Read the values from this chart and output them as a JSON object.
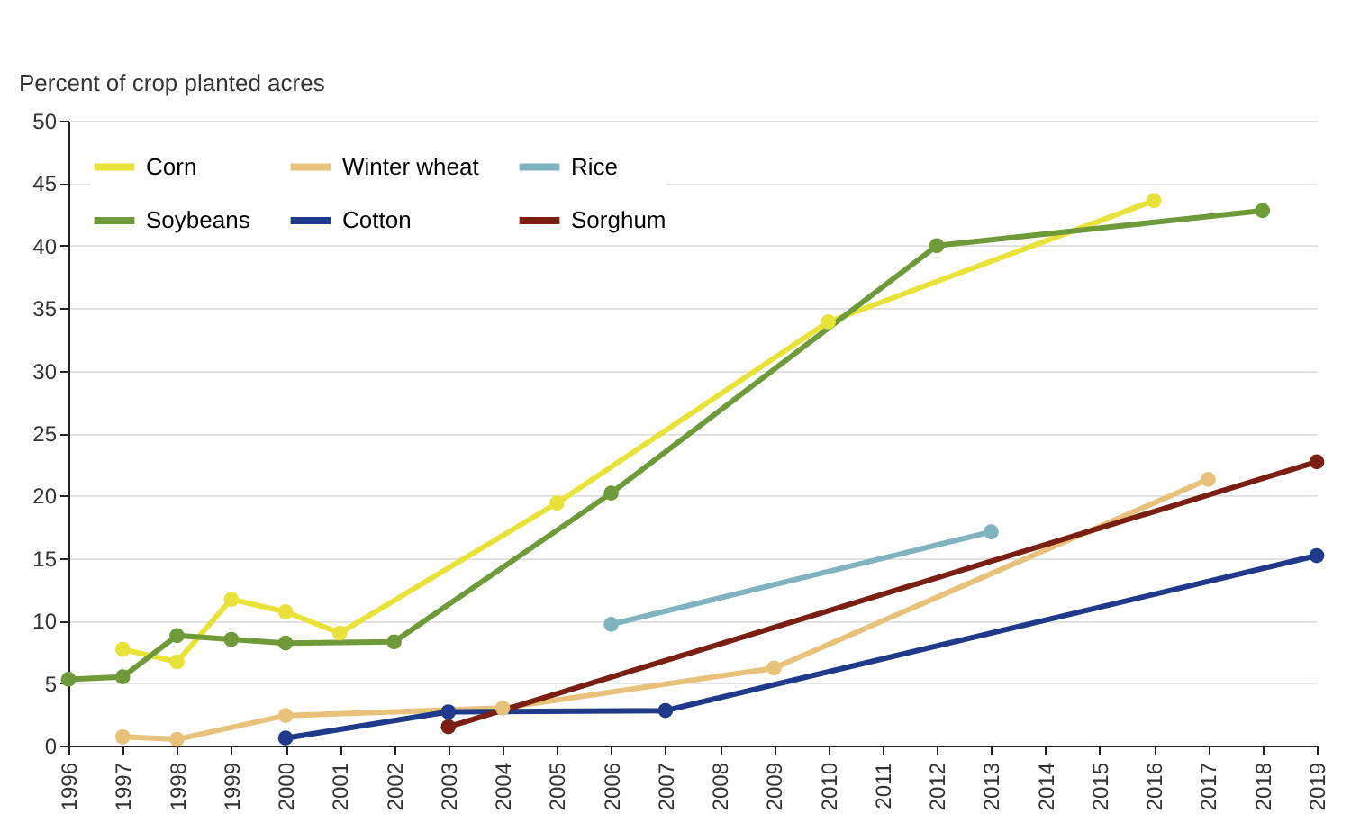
{
  "chart_data": {
    "type": "line",
    "ylabel": "Percent of crop planted acres",
    "xlim": [
      1996,
      2019
    ],
    "xticks": [
      1996,
      1997,
      1998,
      1999,
      2000,
      2001,
      2002,
      2003,
      2004,
      2005,
      2006,
      2007,
      2008,
      2009,
      2010,
      2011,
      2012,
      2013,
      2014,
      2015,
      2016,
      2017,
      2018,
      2019
    ],
    "ylim": [
      0,
      50
    ],
    "yticks": [
      0,
      5,
      10,
      15,
      20,
      25,
      30,
      35,
      40,
      45,
      50
    ],
    "grid": "y",
    "legend": "top left",
    "marker": "circle",
    "line_style": "solid",
    "series": [
      {
        "name": "Corn",
        "color": "#e8e23a",
        "x": [
          1997,
          1998,
          1999,
          2000,
          2001,
          2005,
          2010,
          2016
        ],
        "values": [
          7.7,
          6.7,
          11.7,
          10.7,
          9.0,
          19.4,
          33.9,
          43.6
        ]
      },
      {
        "name": "Soybeans",
        "color": "#6e9a3a",
        "x": [
          1996,
          1997,
          1998,
          1999,
          2000,
          2002,
          2006,
          2012,
          2018
        ],
        "values": [
          5.3,
          5.5,
          8.8,
          8.5,
          8.2,
          8.3,
          20.2,
          40.0,
          42.8
        ]
      },
      {
        "name": "Winter wheat",
        "color": "#e8c27a",
        "x": [
          1997,
          1998,
          2000,
          2004,
          2009,
          2017
        ],
        "values": [
          0.7,
          0.5,
          2.4,
          3.0,
          6.2,
          21.3
        ]
      },
      {
        "name": "Cotton",
        "color": "#1f3a8a",
        "x": [
          2000,
          2003,
          2007,
          2019
        ],
        "values": [
          0.6,
          2.7,
          2.8,
          15.2
        ]
      },
      {
        "name": "Rice",
        "color": "#7fb3bf",
        "x": [
          2006,
          2013
        ],
        "values": [
          9.7,
          17.1
        ]
      },
      {
        "name": "Sorghum",
        "color": "#7a1f12",
        "x": [
          2003,
          2019
        ],
        "values": [
          1.5,
          22.7
        ]
      }
    ]
  }
}
